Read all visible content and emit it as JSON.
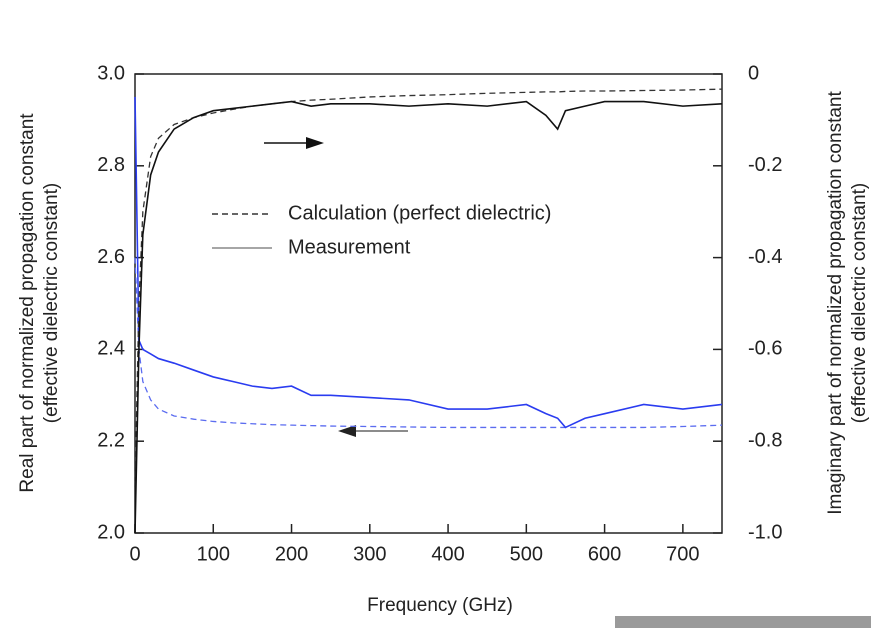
{
  "chart_data": {
    "type": "line",
    "x_label": "Frequency (GHz)",
    "y_label": [
      "Real part of normalized propagation constant",
      "(effective dielectric constant)"
    ],
    "y2_label": [
      "Imaginary part of normalized propagation constant",
      "(effective dielectric constant)"
    ],
    "xlim": [
      0,
      750
    ],
    "xticks": [
      0,
      100,
      200,
      300,
      400,
      500,
      600,
      700
    ],
    "ylim": [
      2.0,
      3.0
    ],
    "yticks": [
      {
        "value": 2.0,
        "label": "2.0"
      },
      2.2,
      2.4,
      2.6,
      2.8,
      {
        "value": 3.0,
        "label": "3.0"
      }
    ],
    "y2lim": [
      -1.0,
      0
    ],
    "y2ticks": [
      {
        "value": -1.0,
        "label": "-1.0"
      },
      -0.8,
      -0.6,
      -0.4,
      -0.2,
      0
    ],
    "legend": [
      {
        "label": "Calculation (perfect dielectric)",
        "dash": "dashed",
        "color": "#333333"
      },
      {
        "label": "Measurement",
        "dash": "solid",
        "color": "#888888"
      }
    ],
    "x": [
      0,
      5,
      10,
      20,
      30,
      50,
      75,
      100,
      125,
      150,
      175,
      200,
      225,
      250,
      300,
      350,
      400,
      450,
      500,
      525,
      540,
      550,
      575,
      600,
      650,
      700,
      750
    ],
    "series": [
      {
        "color": "#5b6cf0",
        "dash": "dashed",
        "axis": "y",
        "values": [
          2.6,
          2.4,
          2.33,
          2.29,
          2.27,
          2.255,
          2.248,
          2.243,
          2.24,
          2.238,
          2.236,
          2.235,
          2.234,
          2.233,
          2.232,
          2.231,
          2.23,
          2.23,
          2.23,
          2.23,
          2.23,
          2.23,
          2.23,
          2.23,
          2.23,
          2.232,
          2.235
        ]
      },
      {
        "color": "#2a3cf0",
        "dash": "solid",
        "axis": "y",
        "values": [
          2.95,
          2.42,
          2.4,
          2.39,
          2.38,
          2.37,
          2.355,
          2.34,
          2.33,
          2.32,
          2.315,
          2.32,
          2.3,
          2.3,
          2.295,
          2.29,
          2.27,
          2.27,
          2.28,
          2.26,
          2.25,
          2.23,
          2.25,
          2.26,
          2.28,
          2.27,
          2.28
        ]
      },
      {
        "color": "#333333",
        "dash": "dashed",
        "axis": "y2",
        "values": [
          -0.9,
          -0.5,
          -0.3,
          -0.18,
          -0.14,
          -0.11,
          -0.095,
          -0.085,
          -0.077,
          -0.07,
          -0.065,
          -0.06,
          -0.057,
          -0.055,
          -0.05,
          -0.047,
          -0.045,
          -0.042,
          -0.04,
          -0.039,
          -0.039,
          -0.038,
          -0.037,
          -0.037,
          -0.036,
          -0.035,
          -0.033
        ]
      },
      {
        "color": "#111111",
        "dash": "solid",
        "axis": "y2",
        "values": [
          -1.0,
          -0.6,
          -0.35,
          -0.22,
          -0.17,
          -0.12,
          -0.095,
          -0.08,
          -0.075,
          -0.07,
          -0.065,
          -0.06,
          -0.07,
          -0.065,
          -0.065,
          -0.07,
          -0.065,
          -0.07,
          -0.06,
          -0.09,
          -0.12,
          -0.08,
          -0.07,
          -0.06,
          -0.06,
          -0.07,
          -0.065
        ]
      }
    ]
  }
}
